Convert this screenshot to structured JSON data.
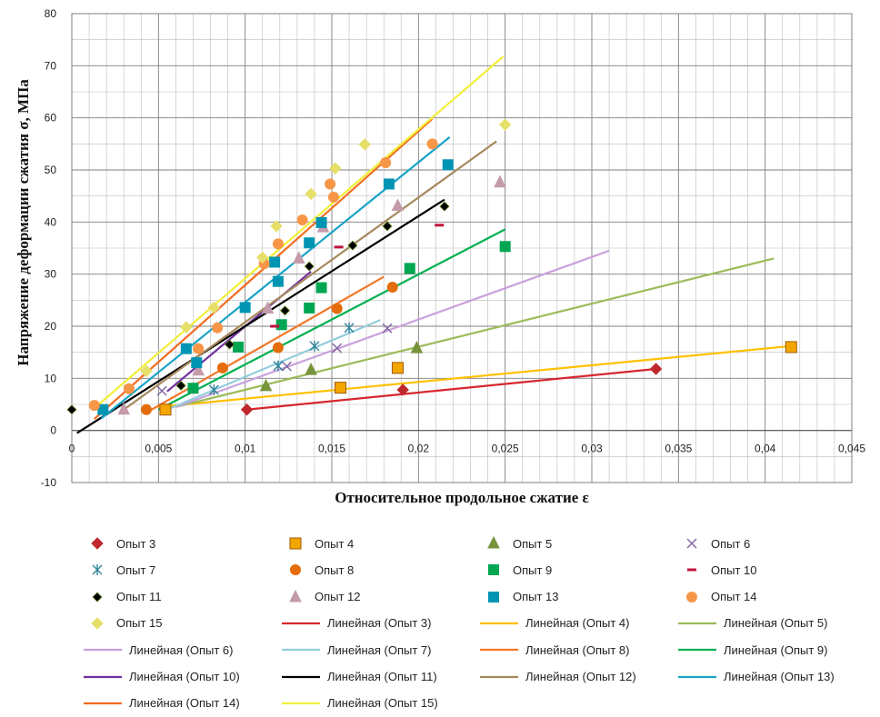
{
  "chart_data": {
    "type": "scatter",
    "title": "",
    "xlabel": "Относительное продольное сжатие ε",
    "ylabel": "Напряжение деформации сжатия σ, МПа",
    "xlim": [
      0,
      0.045
    ],
    "ylim": [
      -10,
      80
    ],
    "x_ticks": [
      "0",
      "0,005",
      "0,01",
      "0,015",
      "0,02",
      "0,025",
      "0,03",
      "0,035",
      "0,04",
      "0,045"
    ],
    "y_ticks": [
      "-10",
      "0",
      "10",
      "20",
      "30",
      "40",
      "50",
      "60",
      "70",
      "80"
    ],
    "grid": true,
    "legend_position": "bottom",
    "series": [
      {
        "name": "Опыт 3",
        "marker": "diamond",
        "color": "#c0282d",
        "points": [
          [
            0.0101,
            4
          ],
          [
            0.0191,
            7.8
          ],
          [
            0.0337,
            11.8
          ]
        ]
      },
      {
        "name": "Опыт 4",
        "marker": "square-outline",
        "color": "#f4a600",
        "points": [
          [
            0.0054,
            4
          ],
          [
            0.0155,
            8.2
          ],
          [
            0.0188,
            12
          ],
          [
            0.0415,
            16
          ]
        ]
      },
      {
        "name": "Опыт 5",
        "marker": "triangle",
        "color": "#77933c",
        "points": [
          [
            0.0112,
            8.5
          ],
          [
            0.0138,
            11.6
          ],
          [
            0.0199,
            15.8
          ]
        ]
      },
      {
        "name": "Опыт 6",
        "marker": "x",
        "color": "#8064a2",
        "points": [
          [
            0.0052,
            7.6
          ],
          [
            0.0124,
            12.3
          ],
          [
            0.0153,
            15.8
          ],
          [
            0.0182,
            19.6
          ]
        ]
      },
      {
        "name": "Опыт 7",
        "marker": "asterisk",
        "color": "#31859c",
        "points": [
          [
            0.0082,
            7.8
          ],
          [
            0.0119,
            12.4
          ],
          [
            0.014,
            16.2
          ],
          [
            0.016,
            19.7
          ]
        ]
      },
      {
        "name": "Опыт 8",
        "marker": "circle",
        "color": "#e46c0a",
        "points": [
          [
            0.0043,
            4
          ],
          [
            0.0087,
            12
          ],
          [
            0.0119,
            15.9
          ],
          [
            0.0153,
            23.4
          ],
          [
            0.0185,
            27.5
          ]
        ]
      },
      {
        "name": "Опыт 9",
        "marker": "square",
        "color": "#00a651",
        "points": [
          [
            0.007,
            8.1
          ],
          [
            0.0096,
            16
          ],
          [
            0.0121,
            20.3
          ],
          [
            0.0137,
            23.5
          ],
          [
            0.0144,
            27.4
          ],
          [
            0.0195,
            31.1
          ],
          [
            0.025,
            35.3
          ]
        ]
      },
      {
        "name": "Опыт 10",
        "marker": "dash",
        "color": "#c0143c",
        "points": [
          [
            0.0117,
            20
          ],
          [
            0.0154,
            35.2
          ],
          [
            0.0212,
            39.4
          ]
        ]
      },
      {
        "name": "Опыт 11",
        "marker": "diamond-small",
        "color": "#000000",
        "points": [
          [
            0,
            4
          ],
          [
            0.0063,
            8.6
          ],
          [
            0.0091,
            16.5
          ],
          [
            0.0123,
            23
          ],
          [
            0.0137,
            31.5
          ],
          [
            0.0162,
            35.5
          ],
          [
            0.0182,
            39.2
          ],
          [
            0.0215,
            43
          ]
        ]
      },
      {
        "name": "Опыт 12",
        "marker": "triangle",
        "color": "#c39bab",
        "points": [
          [
            0.003,
            4
          ],
          [
            0.0073,
            11.5
          ],
          [
            0.0113,
            23.4
          ],
          [
            0.0131,
            33
          ],
          [
            0.0145,
            39
          ],
          [
            0.0188,
            43.1
          ],
          [
            0.0247,
            47.6
          ]
        ]
      },
      {
        "name": "Опыт 13",
        "marker": "square",
        "color": "#0094b3",
        "points": [
          [
            0.0018,
            4
          ],
          [
            0.0066,
            15.7
          ],
          [
            0.0072,
            13
          ],
          [
            0.01,
            23.6
          ],
          [
            0.0119,
            28.6
          ],
          [
            0.0117,
            32.3
          ],
          [
            0.0137,
            36
          ],
          [
            0.0144,
            39.9
          ],
          [
            0.0183,
            47.3
          ],
          [
            0.0217,
            51
          ]
        ]
      },
      {
        "name": "Опыт 14",
        "marker": "circle",
        "color": "#f79646",
        "points": [
          [
            0.0013,
            4.8
          ],
          [
            0.0033,
            8
          ],
          [
            0.0073,
            15.7
          ],
          [
            0.0084,
            19.7
          ],
          [
            0.0111,
            32
          ],
          [
            0.0119,
            35.8
          ],
          [
            0.0133,
            40.4
          ],
          [
            0.0149,
            47.3
          ],
          [
            0.0151,
            44.8
          ],
          [
            0.0181,
            51.4
          ],
          [
            0.0208,
            55
          ]
        ]
      },
      {
        "name": "Опыт 15",
        "marker": "diamond",
        "color": "#e6e06a",
        "points": [
          [
            0.0043,
            11.4
          ],
          [
            0.0066,
            19.8
          ],
          [
            0.0082,
            23.6
          ],
          [
            0.011,
            33.2
          ],
          [
            0.0118,
            39.2
          ],
          [
            0.0138,
            45.4
          ],
          [
            0.0152,
            50.3
          ],
          [
            0.0169,
            54.9
          ],
          [
            0.025,
            58.7
          ]
        ]
      }
    ],
    "trendlines": [
      {
        "name": "Линейная (Опыт 3)",
        "color": "#d7262e",
        "from": [
          0.0101,
          4
        ],
        "to": [
          0.0337,
          11.8
        ]
      },
      {
        "name": "Линейная (Опыт 4)",
        "color": "#ffc000",
        "from": [
          0.005,
          4.5
        ],
        "to": [
          0.0415,
          16.2
        ]
      },
      {
        "name": "Линейная (Опыт 5)",
        "color": "#9bbb59",
        "from": [
          0.006,
          4.5
        ],
        "to": [
          0.0405,
          33
        ]
      },
      {
        "name": "Линейная (Опыт 6)",
        "color": "#c9a0dc",
        "from": [
          0.006,
          4.5
        ],
        "to": [
          0.031,
          34.5
        ]
      },
      {
        "name": "Линейная (Опыт 7)",
        "color": "#93cddd",
        "from": [
          0.0055,
          4
        ],
        "to": [
          0.0178,
          21.2
        ]
      },
      {
        "name": "Линейная (Опыт 8)",
        "color": "#f3782a",
        "from": [
          0.0045,
          3.8
        ],
        "to": [
          0.018,
          29.5
        ]
      },
      {
        "name": "Линейная (Опыт 9)",
        "color": "#00b050",
        "from": [
          0.005,
          4
        ],
        "to": [
          0.025,
          38.6
        ]
      },
      {
        "name": "Линейная (Опыт 10)",
        "color": "#7030a0",
        "from": [
          0.0055,
          7.5
        ],
        "to": [
          0.0138,
          30.5
        ]
      },
      {
        "name": "Линейная (Опыт 11)",
        "color": "#000000",
        "from": [
          0.0003,
          -0.5
        ],
        "to": [
          0.0215,
          44.3
        ]
      },
      {
        "name": "Линейная (Опыт 12)",
        "color": "#a5885c",
        "from": [
          0.003,
          4
        ],
        "to": [
          0.0245,
          55.5
        ]
      },
      {
        "name": "Линейная (Опыт 13)",
        "color": "#1aa3c7",
        "from": [
          0.0017,
          2.3
        ],
        "to": [
          0.0218,
          56.3
        ]
      },
      {
        "name": "Линейная (Опыт 14)",
        "color": "#f26d21",
        "from": [
          0.0013,
          2.2
        ],
        "to": [
          0.0208,
          59.8
        ]
      },
      {
        "name": "Линейная (Опыт 15)",
        "color": "#f2ef3a",
        "from": [
          0.0012,
          4
        ],
        "to": [
          0.0249,
          71.8
        ]
      }
    ]
  }
}
